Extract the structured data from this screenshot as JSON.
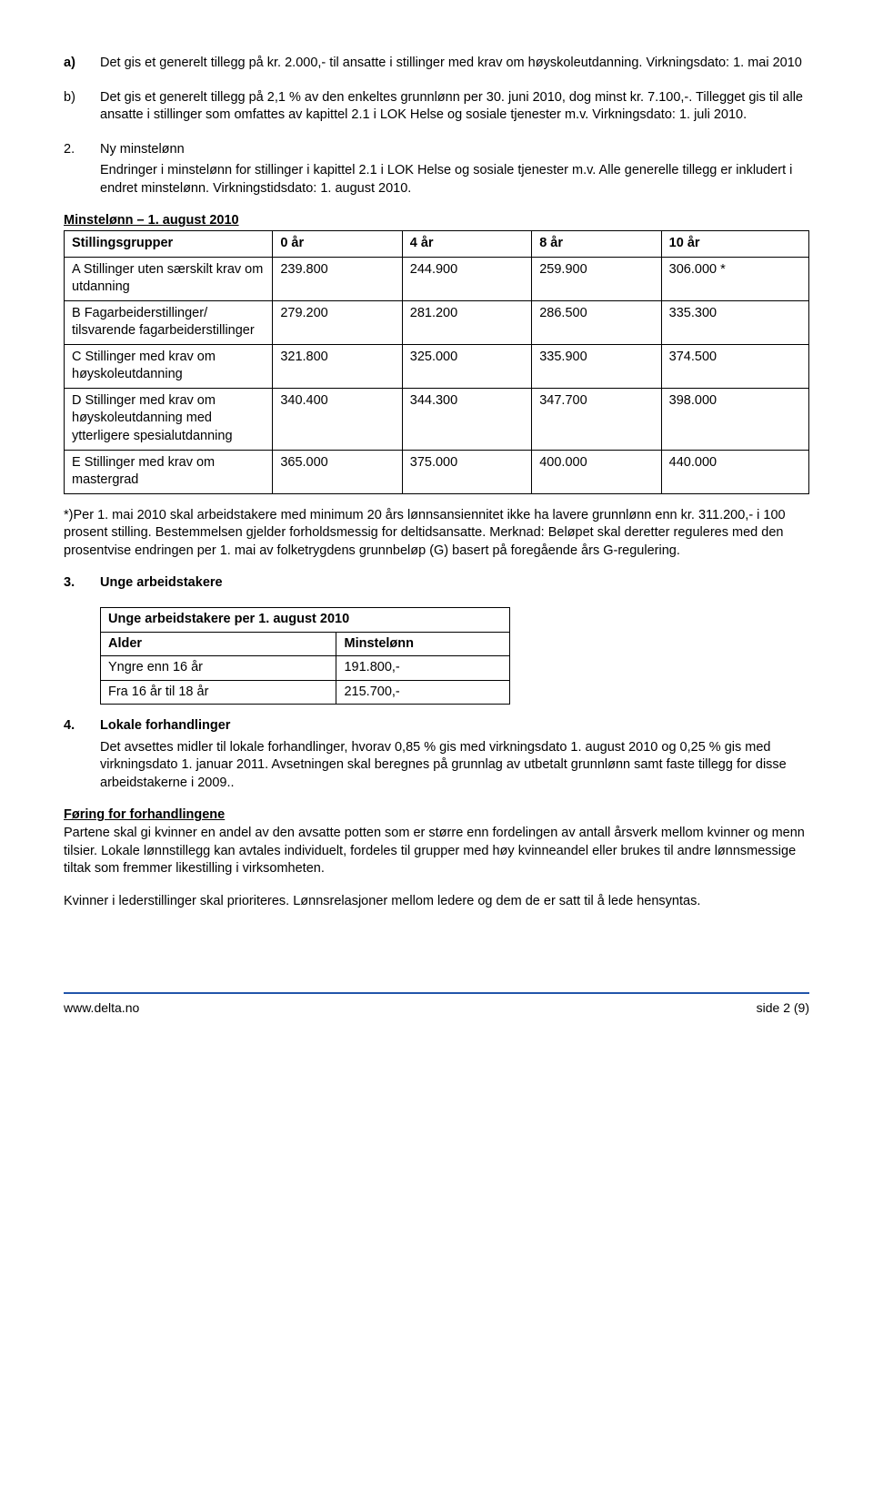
{
  "item_a": {
    "label": "a)",
    "text": "Det gis et generelt tillegg på kr. 2.000,- til ansatte i stillinger med krav om høyskoleutdanning. Virkningsdato: 1. mai 2010"
  },
  "item_b": {
    "label": "b)",
    "text": "Det gis et generelt tillegg på 2,1 % av den enkeltes grunnlønn per 30. juni 2010, dog minst kr. 7.100,-. Tillegget gis til alle ansatte i stillinger som omfattes av kapittel 2.1 i LOK Helse og sosiale tjenester m.v. Virkningsdato: 1. juli 2010."
  },
  "sec2": {
    "num": "2.",
    "title": "Ny minstelønn",
    "body": "Endringer i minstelønn for stillinger i kapittel 2.1 i LOK Helse og sosiale tjenester m.v. Alle generelle tillegg er inkludert i endret minstelønn. Virkningstidsdato: 1. august 2010."
  },
  "table1": {
    "caption": "Minstelønn – 1. august 2010",
    "header": [
      "Stillingsgrupper",
      "0 år",
      "4 år",
      "8 år",
      "10 år"
    ],
    "rows": [
      {
        "label": "A Stillinger uten særskilt krav om utdanning",
        "c0": "239.800",
        "c1": "244.900",
        "c2": "259.900",
        "c3": "306.000 *"
      },
      {
        "label": "B Fagarbeiderstillinger/ tilsvarende fagarbeiderstillinger",
        "c0": "279.200",
        "c1": "281.200",
        "c2": "286.500",
        "c3": "335.300"
      },
      {
        "label": "C Stillinger med krav om høyskoleutdanning",
        "c0": "321.800",
        "c1": "325.000",
        "c2": "335.900",
        "c3": "374.500"
      },
      {
        "label": "D Stillinger med krav om høyskoleutdanning med ytterligere spesialutdanning",
        "c0": "340.400",
        "c1": "344.300",
        "c2": "347.700",
        "c3": "398.000"
      },
      {
        "label": "E Stillinger med krav om mastergrad",
        "c0": "365.000",
        "c1": "375.000",
        "c2": "400.000",
        "c3": "440.000"
      }
    ]
  },
  "note": "*)Per 1. mai 2010 skal arbeidstakere med minimum 20 års lønnsansiennitet ikke ha lavere grunnlønn enn kr. 311.200,- i 100 prosent stilling. Bestemmelsen gjelder forholdsmessig for deltidsansatte. Merknad: Beløpet skal deretter reguleres med den prosentvise endringen per 1. mai av folketrygdens grunnbeløp (G) basert på foregående års G-regulering.",
  "sec3": {
    "num": "3.",
    "title": "Unge arbeidstakere"
  },
  "table2": {
    "caption": "Unge arbeidstakere per 1. august 2010",
    "header": [
      "Alder",
      "Minstelønn"
    ],
    "rows": [
      {
        "c0": "Yngre enn 16 år",
        "c1": "191.800,-"
      },
      {
        "c0": "Fra 16 år til 18 år",
        "c1": "215.700,-"
      }
    ]
  },
  "sec4": {
    "num": "4.",
    "title": "Lokale forhandlinger",
    "body": "Det avsettes midler til lokale forhandlinger, hvorav 0,85 % gis med virkningsdato 1. august 2010 og 0,25 % gis med virkningsdato 1. januar 2011. Avsetningen skal beregnes på grunnlag av utbetalt grunnlønn samt faste tillegg for disse arbeidstakerne i 2009.."
  },
  "foring": {
    "title": "Føring for forhandlingene",
    "p1": "Partene skal gi kvinner en andel av den avsatte potten som er større enn fordelingen av antall årsverk mellom kvinner og menn tilsier. Lokale lønnstillegg kan avtales individuelt, fordeles til grupper med høy kvinneandel eller brukes til andre lønnsmessige tiltak som fremmer likestilling i virksomheten.",
    "p2": "Kvinner i lederstillinger skal prioriteres. Lønnsrelasjoner mellom ledere og dem de er satt til å lede hensyntas."
  },
  "footer": {
    "left": "www.delta.no",
    "right": "side 2 (9)"
  }
}
